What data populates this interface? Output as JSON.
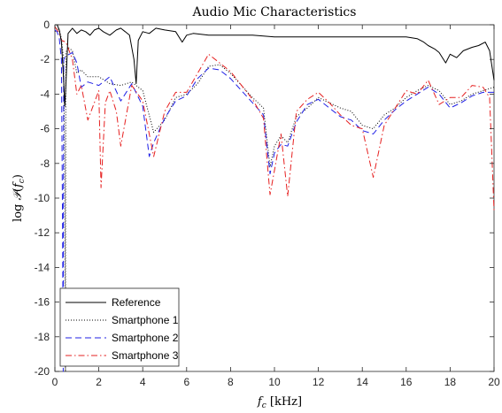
{
  "chart_data": {
    "type": "line",
    "title": "Audio Mic Characteristics",
    "xlabel": "f_c [kHz]",
    "ylabel": "log P(f_c)",
    "xlim": [
      0,
      20
    ],
    "ylim": [
      -20,
      0
    ],
    "xticks": [
      0,
      2,
      4,
      6,
      8,
      10,
      12,
      14,
      16,
      18,
      20
    ],
    "yticks": [
      -20,
      -18,
      -16,
      -14,
      -12,
      -10,
      -8,
      -6,
      -4,
      -2,
      0
    ],
    "grid": false,
    "legend_position": "bottom-left",
    "series": [
      {
        "name": "Reference",
        "color": "#000000",
        "style": "solid",
        "x": [
          0,
          0.1,
          0.2,
          0.3,
          0.4,
          0.45,
          0.5,
          0.6,
          0.8,
          1.0,
          1.2,
          1.4,
          1.6,
          1.8,
          2.0,
          2.2,
          2.5,
          2.8,
          3.0,
          3.2,
          3.4,
          3.6,
          3.7,
          3.8,
          4.0,
          4.3,
          4.6,
          5.0,
          5.5,
          5.8,
          6.0,
          6.3,
          7.0,
          8.0,
          9.0,
          10.0,
          11.0,
          12.0,
          13.0,
          14.0,
          15.0,
          16.0,
          16.5,
          16.8,
          17.0,
          17.3,
          17.5,
          17.8,
          18.0,
          18.3,
          18.6,
          19.0,
          19.3,
          19.6,
          19.8,
          20.0
        ],
        "y": [
          0,
          0,
          -0.3,
          -1.0,
          -3.2,
          -4.7,
          -3.5,
          -0.5,
          -0.2,
          -0.5,
          -0.3,
          -0.4,
          -0.6,
          -0.3,
          -0.2,
          -0.4,
          -0.6,
          -0.3,
          -0.2,
          -0.4,
          -0.6,
          -2.0,
          -3.4,
          -0.9,
          -0.4,
          -0.5,
          -0.2,
          -0.3,
          -0.4,
          -1.0,
          -0.6,
          -0.5,
          -0.6,
          -0.6,
          -0.6,
          -0.7,
          -0.7,
          -0.7,
          -0.7,
          -0.7,
          -0.7,
          -0.7,
          -0.8,
          -1.0,
          -1.2,
          -1.4,
          -1.6,
          -2.2,
          -1.7,
          -1.9,
          -1.5,
          -1.3,
          -1.2,
          -1.0,
          -1.5,
          -3.2
        ]
      },
      {
        "name": "Smartphone 1",
        "color": "#000000",
        "style": "dotted",
        "x": [
          0,
          0.1,
          0.2,
          0.3,
          0.4,
          0.45,
          0.48,
          0.5,
          0.6,
          0.8,
          1.0,
          1.2,
          1.5,
          2.0,
          2.5,
          3.0,
          3.5,
          4.0,
          4.5,
          5.0,
          5.5,
          6.0,
          6.5,
          7.0,
          7.5,
          8.0,
          8.5,
          9.0,
          9.5,
          9.8,
          10.0,
          10.3,
          10.6,
          11.0,
          11.5,
          12.0,
          12.5,
          13.0,
          13.5,
          14.0,
          14.5,
          15.0,
          15.5,
          16.0,
          16.5,
          17.0,
          17.5,
          18.0,
          18.5,
          19.0,
          19.5,
          20.0
        ],
        "y": [
          -0.4,
          -0.2,
          -0.3,
          -0.8,
          -2.0,
          -8.0,
          -20.0,
          -1.6,
          -1.3,
          -1.5,
          -2.8,
          -2.6,
          -3.0,
          -3.0,
          -3.4,
          -3.5,
          -3.3,
          -3.8,
          -6.2,
          -5.5,
          -4.2,
          -4.0,
          -3.4,
          -2.4,
          -2.3,
          -2.8,
          -3.5,
          -4.2,
          -4.8,
          -8.2,
          -7.0,
          -6.4,
          -6.8,
          -5.3,
          -4.8,
          -4.2,
          -4.5,
          -4.8,
          -5.0,
          -5.8,
          -6.0,
          -5.2,
          -4.8,
          -4.2,
          -3.8,
          -3.5,
          -3.8,
          -4.6,
          -4.4,
          -4.0,
          -3.8,
          -3.6
        ]
      },
      {
        "name": "Smartphone 2",
        "color": "#1f1fe6",
        "style": "dashed",
        "x": [
          0,
          0.1,
          0.2,
          0.3,
          0.35,
          0.38,
          0.4,
          0.5,
          0.8,
          1.0,
          1.2,
          1.5,
          2.0,
          2.5,
          3.0,
          3.5,
          4.0,
          4.3,
          4.5,
          5.0,
          5.5,
          6.0,
          6.5,
          7.0,
          7.5,
          8.0,
          8.5,
          9.0,
          9.5,
          9.8,
          10.0,
          10.3,
          10.6,
          11.0,
          11.5,
          12.0,
          12.5,
          13.0,
          13.5,
          14.0,
          14.5,
          15.0,
          15.5,
          16.0,
          16.5,
          17.0,
          17.5,
          18.0,
          18.5,
          19.0,
          19.5,
          20.0
        ],
        "y": [
          -0.3,
          -0.4,
          -0.8,
          -2.0,
          -12.0,
          -20.0,
          -2.0,
          -1.8,
          -1.6,
          -2.2,
          -3.6,
          -3.3,
          -3.5,
          -3.0,
          -4.4,
          -3.4,
          -4.7,
          -7.6,
          -6.8,
          -5.4,
          -4.4,
          -4.1,
          -3.1,
          -2.5,
          -2.6,
          -3.1,
          -3.8,
          -4.5,
          -5.2,
          -8.6,
          -7.4,
          -6.9,
          -7.0,
          -5.6,
          -4.6,
          -4.3,
          -4.8,
          -5.3,
          -5.5,
          -6.1,
          -6.3,
          -5.5,
          -4.9,
          -4.4,
          -4.0,
          -3.6,
          -4.0,
          -4.8,
          -4.5,
          -4.1,
          -3.9,
          -3.9
        ]
      },
      {
        "name": "Smartphone 3",
        "color": "#e62020",
        "style": "dashdot",
        "x": [
          0,
          0.1,
          0.2,
          0.3,
          0.5,
          0.8,
          1.0,
          1.2,
          1.5,
          2.0,
          2.1,
          2.3,
          2.5,
          2.8,
          3.0,
          3.5,
          4.0,
          4.5,
          5.0,
          5.5,
          6.0,
          6.5,
          7.0,
          7.5,
          8.0,
          8.5,
          9.0,
          9.5,
          9.8,
          10.0,
          10.3,
          10.6,
          11.0,
          11.5,
          12.0,
          12.5,
          13.0,
          13.5,
          14.0,
          14.5,
          15.0,
          15.5,
          16.0,
          16.5,
          17.0,
          17.5,
          18.0,
          18.5,
          19.0,
          19.5,
          19.8,
          20.0
        ],
        "y": [
          -0.1,
          -0.3,
          -0.5,
          -0.9,
          -1.0,
          -2.0,
          -4.0,
          -3.5,
          -5.5,
          -3.8,
          -9.4,
          -4.5,
          -3.8,
          -5.0,
          -7.0,
          -3.5,
          -4.4,
          -7.6,
          -5.0,
          -3.9,
          -3.9,
          -2.8,
          -1.7,
          -2.2,
          -2.7,
          -3.5,
          -4.3,
          -5.4,
          -9.8,
          -8.4,
          -6.3,
          -9.9,
          -5.0,
          -4.3,
          -3.9,
          -4.5,
          -5.2,
          -5.8,
          -6.0,
          -8.8,
          -5.8,
          -4.8,
          -3.8,
          -4.0,
          -3.2,
          -4.6,
          -4.2,
          -4.2,
          -3.5,
          -3.6,
          -4.2,
          -10.7
        ]
      }
    ]
  }
}
